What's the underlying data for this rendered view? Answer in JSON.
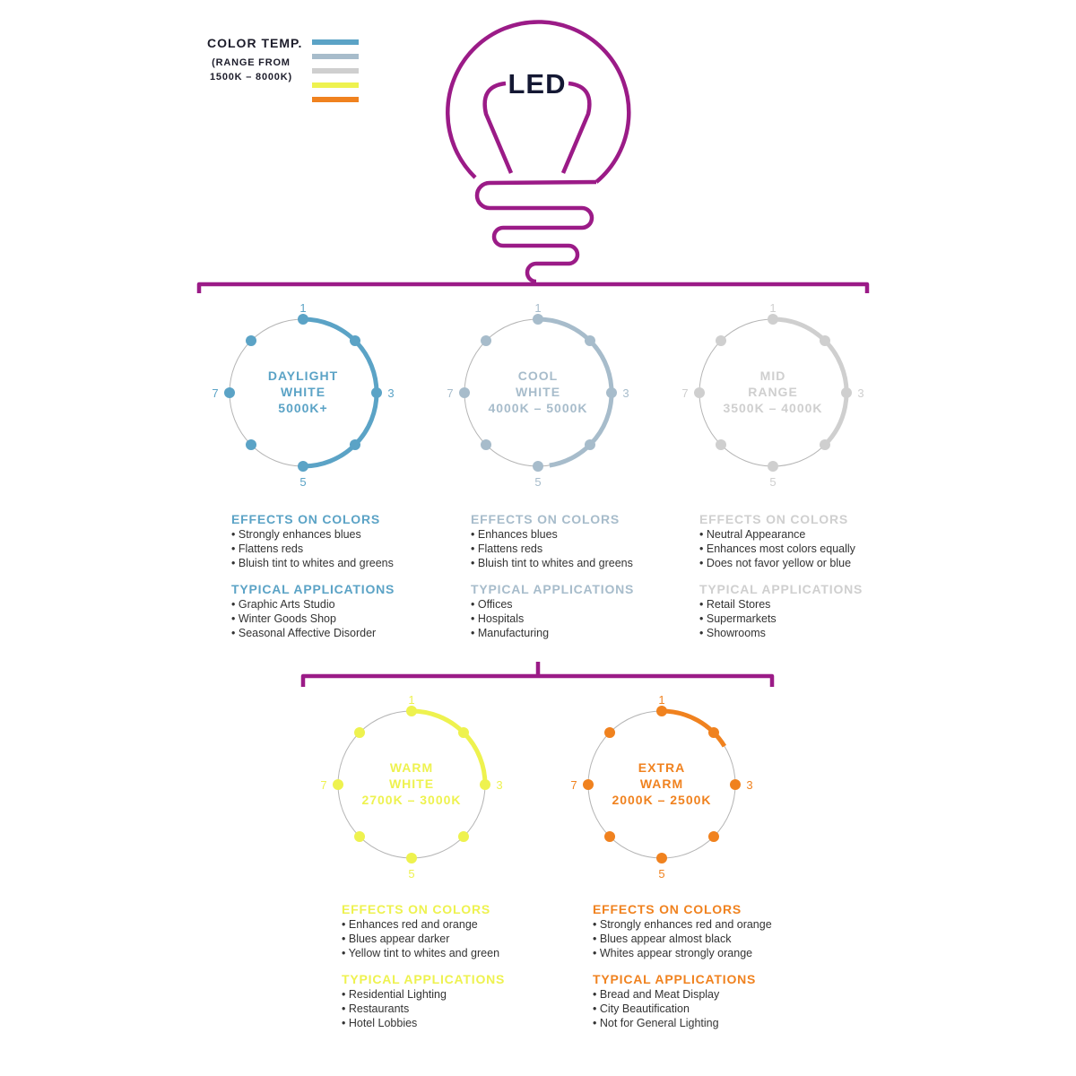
{
  "legend": {
    "title": "COLOR TEMP.",
    "subtitle_line1": "(RANGE FROM",
    "subtitle_line2": "1500K – 8000K)",
    "swatches": [
      "#5ba3c6",
      "#a7bccb",
      "#cfcfcf",
      "#eef24f",
      "#f0821f"
    ]
  },
  "bulb": {
    "label": "LED",
    "color": "#9b1b87",
    "label_color": "#141833"
  },
  "scale_labels": [
    "1",
    "3",
    "5",
    "7"
  ],
  "categories": [
    {
      "id": "daylight",
      "name_line1": "DAYLIGHT",
      "name_line2": "WHITE",
      "range": "5000K+",
      "color": "#5ba3c6",
      "arc_end_position": 5,
      "effects_heading": "EFFECTS ON COLORS",
      "effects": [
        "Strongly enhances blues",
        "Flattens reds",
        "Bluish tint to whites and greens"
      ],
      "apps_heading": "TYPICAL APPLICATIONS",
      "apps": [
        "Graphic Arts Studio",
        "Winter Goods Shop",
        "Seasonal Affective Disorder"
      ]
    },
    {
      "id": "cool",
      "name_line1": "COOL",
      "name_line2": "WHITE",
      "range": "4000K – 5000K",
      "color": "#a7bccb",
      "arc_end_position": 4.8,
      "effects_heading": "EFFECTS ON COLORS",
      "effects": [
        "Enhances blues",
        "Flattens reds",
        "Bluish tint to whites and greens"
      ],
      "apps_heading": "TYPICAL APPLICATIONS",
      "apps": [
        "Offices",
        "Hospitals",
        "Manufacturing"
      ]
    },
    {
      "id": "mid",
      "name_line1": "MID",
      "name_line2": "RANGE",
      "range": "3500K – 4000K",
      "color": "#cfcfcf",
      "arc_end_position": 4,
      "effects_heading": "EFFECTS ON COLORS",
      "effects": [
        "Neutral Appearance",
        "Enhances most colors equally",
        "Does not favor yellow or blue"
      ],
      "apps_heading": "TYPICAL APPLICATIONS",
      "apps": [
        "Retail Stores",
        "Supermarkets",
        "Showrooms"
      ]
    },
    {
      "id": "warm",
      "name_line1": "WARM",
      "name_line2": "WHITE",
      "range": "2700K – 3000K",
      "color": "#eef24f",
      "arc_end_position": 3,
      "effects_heading": "EFFECTS ON COLORS",
      "effects": [
        "Enhances red and orange",
        "Blues appear darker",
        "Yellow tint to whites and green"
      ],
      "apps_heading": "TYPICAL APPLICATIONS",
      "apps": [
        "Residential Lighting",
        "Restaurants",
        "Hotel Lobbies"
      ]
    },
    {
      "id": "extra",
      "name_line1": "EXTRA",
      "name_line2": "WARM",
      "range": "2000K – 2500K",
      "color": "#f0821f",
      "arc_end_position": 2.3,
      "effects_heading": "EFFECTS ON COLORS",
      "effects": [
        "Strongly enhances red and orange",
        "Blues appear almost black",
        "Whites appear strongly orange"
      ],
      "apps_heading": "TYPICAL APPLICATIONS",
      "apps": [
        "Bread and Meat Display",
        "City Beautification",
        "Not for General Lighting"
      ]
    }
  ]
}
